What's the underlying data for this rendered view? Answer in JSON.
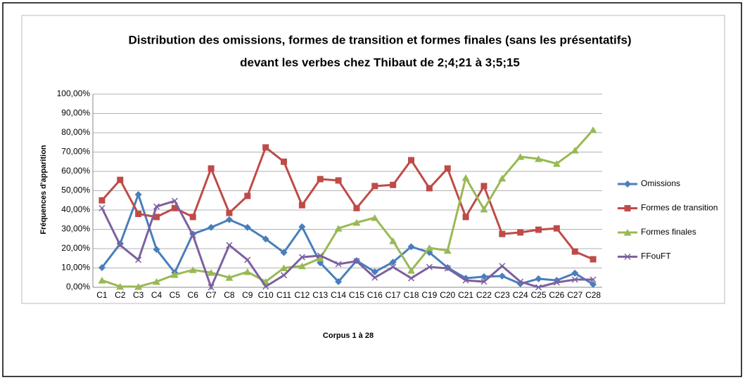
{
  "chart_data": {
    "type": "line",
    "title": "Distribution des omissions, formes de transition et formes finales (sans les présentatifs)",
    "subtitle": "devant les verbes chez Thibaut de 2;4;21 à 3;5;15",
    "y_label": "Fréquences d'apparition",
    "x_label": "Corpus 1 à 28",
    "categories": [
      "C1",
      "C2",
      "C3",
      "C4",
      "C5",
      "C6",
      "C7",
      "C8",
      "C9",
      "C10",
      "C11",
      "C12",
      "C13",
      "C14",
      "C15",
      "C16",
      "C17",
      "C18",
      "C19",
      "C20",
      "C21",
      "C22",
      "C23",
      "C24",
      "C25",
      "C26",
      "C27",
      "C28"
    ],
    "series": [
      {
        "name": "Omissions",
        "color": "#4a7ebb",
        "marker": "diamond",
        "values": [
          10.2,
          22.5,
          48,
          19.6,
          7.6,
          27.6,
          31,
          35,
          31,
          25,
          18,
          31.3,
          12.7,
          2.9,
          13.8,
          8,
          13,
          21,
          18,
          10.2,
          4.7,
          5.5,
          5.8,
          1.8,
          4.4,
          3.6,
          7.3,
          1.5
        ]
      },
      {
        "name": "Formes de transition",
        "color": "#be4b48",
        "marker": "square",
        "values": [
          45,
          55.6,
          38,
          36.4,
          41,
          36.4,
          61.5,
          38.5,
          47.3,
          72.4,
          65,
          42.5,
          56,
          55.3,
          41,
          52.4,
          53,
          65.8,
          51.3,
          61.5,
          36.4,
          52.4,
          27.6,
          28.4,
          29.8,
          30.5,
          18.5,
          14.5
        ]
      },
      {
        "name": "Formes finales",
        "color": "#98b954",
        "marker": "triangle",
        "values": [
          3.6,
          0.4,
          0.3,
          2.9,
          6.5,
          9,
          7.6,
          5,
          8,
          2.9,
          10,
          11,
          15,
          30.5,
          33.5,
          36,
          24,
          8.7,
          20.4,
          19,
          56.7,
          40.4,
          56.4,
          67.6,
          66.5,
          64,
          70.9,
          81.5
        ]
      },
      {
        "name": "FFouFT",
        "color": "#7d60a0",
        "marker": "x",
        "values": [
          41,
          21.8,
          14.2,
          41.8,
          44.7,
          27,
          0,
          21.8,
          14.2,
          0.4,
          6.2,
          15.6,
          16.4,
          12,
          13.5,
          5,
          10.5,
          4.7,
          10.5,
          9.8,
          3.6,
          2.9,
          11,
          2.9,
          0,
          2.5,
          4,
          4
        ]
      }
    ],
    "ylim": [
      0,
      100
    ],
    "yticks": [
      {
        "value": 0,
        "label": "0,00%"
      },
      {
        "value": 10,
        "label": "10,00%"
      },
      {
        "value": 20,
        "label": "20,00%"
      },
      {
        "value": 30,
        "label": "30,00%"
      },
      {
        "value": 40,
        "label": "40,00%"
      },
      {
        "value": 50,
        "label": "50,00%"
      },
      {
        "value": 60,
        "label": "60,00%"
      },
      {
        "value": 70,
        "label": "70,00%"
      },
      {
        "value": 80,
        "label": "80,00%"
      },
      {
        "value": 90,
        "label": "90,00%"
      },
      {
        "value": 100,
        "label": "100,00%"
      }
    ],
    "grid": true,
    "legend": "right"
  }
}
